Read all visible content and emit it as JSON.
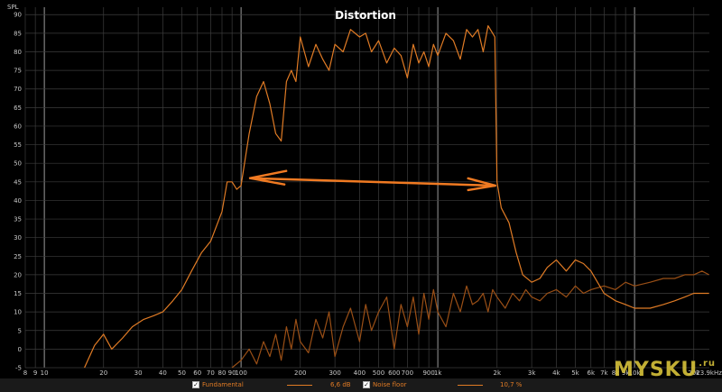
{
  "chart_data": {
    "type": "line",
    "title": "Distortion",
    "ylabel": "SPL",
    "xunit": "Hz",
    "ylim": [
      -5,
      92
    ],
    "xlim": [
      8,
      24000
    ],
    "xscale": "log",
    "grid": true,
    "y_ticks": [
      -5,
      0,
      5,
      10,
      15,
      20,
      25,
      30,
      35,
      40,
      45,
      50,
      55,
      60,
      65,
      70,
      75,
      80,
      85,
      90
    ],
    "x_ticks": [
      {
        "v": 8,
        "label": "8"
      },
      {
        "v": 9,
        "label": "9"
      },
      {
        "v": 10,
        "label": "10"
      },
      {
        "v": 20,
        "label": "20"
      },
      {
        "v": 30,
        "label": "30"
      },
      {
        "v": 40,
        "label": "40"
      },
      {
        "v": 50,
        "label": "50"
      },
      {
        "v": 60,
        "label": "60"
      },
      {
        "v": 70,
        "label": "70"
      },
      {
        "v": 80,
        "label": "80"
      },
      {
        "v": 90,
        "label": "90"
      },
      {
        "v": 100,
        "label": "100"
      },
      {
        "v": 200,
        "label": "200"
      },
      {
        "v": 300,
        "label": "300"
      },
      {
        "v": 400,
        "label": "400"
      },
      {
        "v": 500,
        "label": "500"
      },
      {
        "v": 600,
        "label": "600"
      },
      {
        "v": 700,
        "label": "700"
      },
      {
        "v": 900,
        "label": "900"
      },
      {
        "v": 1000,
        "label": "1k"
      },
      {
        "v": 2000,
        "label": "2k"
      },
      {
        "v": 3000,
        "label": "3k"
      },
      {
        "v": 4000,
        "label": "4k"
      },
      {
        "v": 5000,
        "label": "5k"
      },
      {
        "v": 6000,
        "label": "6k"
      },
      {
        "v": 7000,
        "label": "7k"
      },
      {
        "v": 8000,
        "label": "8k"
      },
      {
        "v": 9000,
        "label": "9k"
      },
      {
        "v": 10000,
        "label": "10k"
      },
      {
        "v": 20000,
        "label": "20k"
      },
      {
        "v": 23900,
        "label": "23.9kHz"
      }
    ],
    "series": [
      {
        "name": "Fundamental",
        "color": "#e07b25",
        "x": [
          16,
          18,
          20,
          22,
          25,
          28,
          32,
          36,
          40,
          45,
          50,
          56,
          63,
          70,
          80,
          85,
          90,
          95,
          100,
          110,
          120,
          130,
          140,
          150,
          160,
          170,
          180,
          190,
          200,
          220,
          240,
          260,
          280,
          300,
          330,
          360,
          400,
          430,
          460,
          500,
          550,
          600,
          650,
          700,
          750,
          800,
          850,
          900,
          950,
          1000,
          1100,
          1200,
          1300,
          1400,
          1500,
          1600,
          1700,
          1800,
          1900,
          1950,
          2000,
          2100,
          2300,
          2500,
          2700,
          3000,
          3300,
          3600,
          4000,
          4500,
          5000,
          5500,
          6000,
          7000,
          8000,
          9000,
          10000,
          12000,
          14000,
          16000,
          18000,
          20000,
          22000,
          23900
        ],
        "y": [
          -5,
          1,
          4,
          0,
          3,
          6,
          8,
          9,
          10,
          13,
          16,
          21,
          26,
          29,
          37,
          45,
          45,
          43,
          44,
          58,
          68,
          72,
          66,
          58,
          56,
          72,
          75,
          72,
          84,
          76,
          82,
          78,
          75,
          82,
          80,
          86,
          84,
          85,
          80,
          83,
          77,
          81,
          79,
          73,
          82,
          77,
          80,
          76,
          82,
          79,
          85,
          83,
          78,
          86,
          84,
          86,
          80,
          87,
          85,
          84,
          45,
          38,
          34,
          26,
          20,
          18,
          19,
          22,
          24,
          21,
          24,
          23,
          21,
          15,
          13,
          12,
          11,
          11,
          12,
          13,
          14,
          15,
          15,
          15
        ]
      },
      {
        "name": "Noise floor",
        "color": "#9a4f16",
        "x": [
          90,
          100,
          110,
          120,
          130,
          140,
          150,
          160,
          170,
          180,
          190,
          200,
          220,
          240,
          260,
          280,
          300,
          330,
          360,
          400,
          430,
          460,
          500,
          550,
          600,
          650,
          700,
          750,
          800,
          850,
          900,
          950,
          1000,
          1100,
          1200,
          1300,
          1400,
          1500,
          1600,
          1700,
          1800,
          1900,
          2000,
          2200,
          2400,
          2600,
          2800,
          3000,
          3300,
          3600,
          4000,
          4500,
          5000,
          5500,
          6000,
          7000,
          8000,
          9000,
          10000,
          12000,
          14000,
          16000,
          18000,
          20000,
          22000,
          23900
        ],
        "y": [
          -5,
          -3,
          0,
          -4,
          2,
          -2,
          4,
          -3,
          6,
          0,
          8,
          2,
          -1,
          8,
          3,
          10,
          -2,
          6,
          11,
          2,
          12,
          5,
          10,
          14,
          0,
          12,
          6,
          14,
          4,
          15,
          8,
          16,
          10,
          6,
          15,
          10,
          17,
          12,
          13,
          15,
          10,
          16,
          14,
          11,
          15,
          13,
          16,
          14,
          13,
          15,
          16,
          14,
          17,
          15,
          16,
          17,
          16,
          18,
          17,
          18,
          19,
          19,
          20,
          20,
          21,
          20
        ]
      }
    ],
    "annotations": [
      {
        "type": "double-arrow",
        "x_start": 100,
        "x_end": 2000,
        "y_start": 46,
        "y_end": 44,
        "color": "#f07a22"
      }
    ]
  },
  "legend": {
    "items": [
      {
        "name": "Fundamental",
        "value": "6,6 dB",
        "checked": true
      },
      {
        "name": "Noise floor",
        "value": "10,7 %",
        "checked": true
      }
    ]
  },
  "watermark": {
    "text": "MYSKU",
    "suffix": ".ru"
  }
}
